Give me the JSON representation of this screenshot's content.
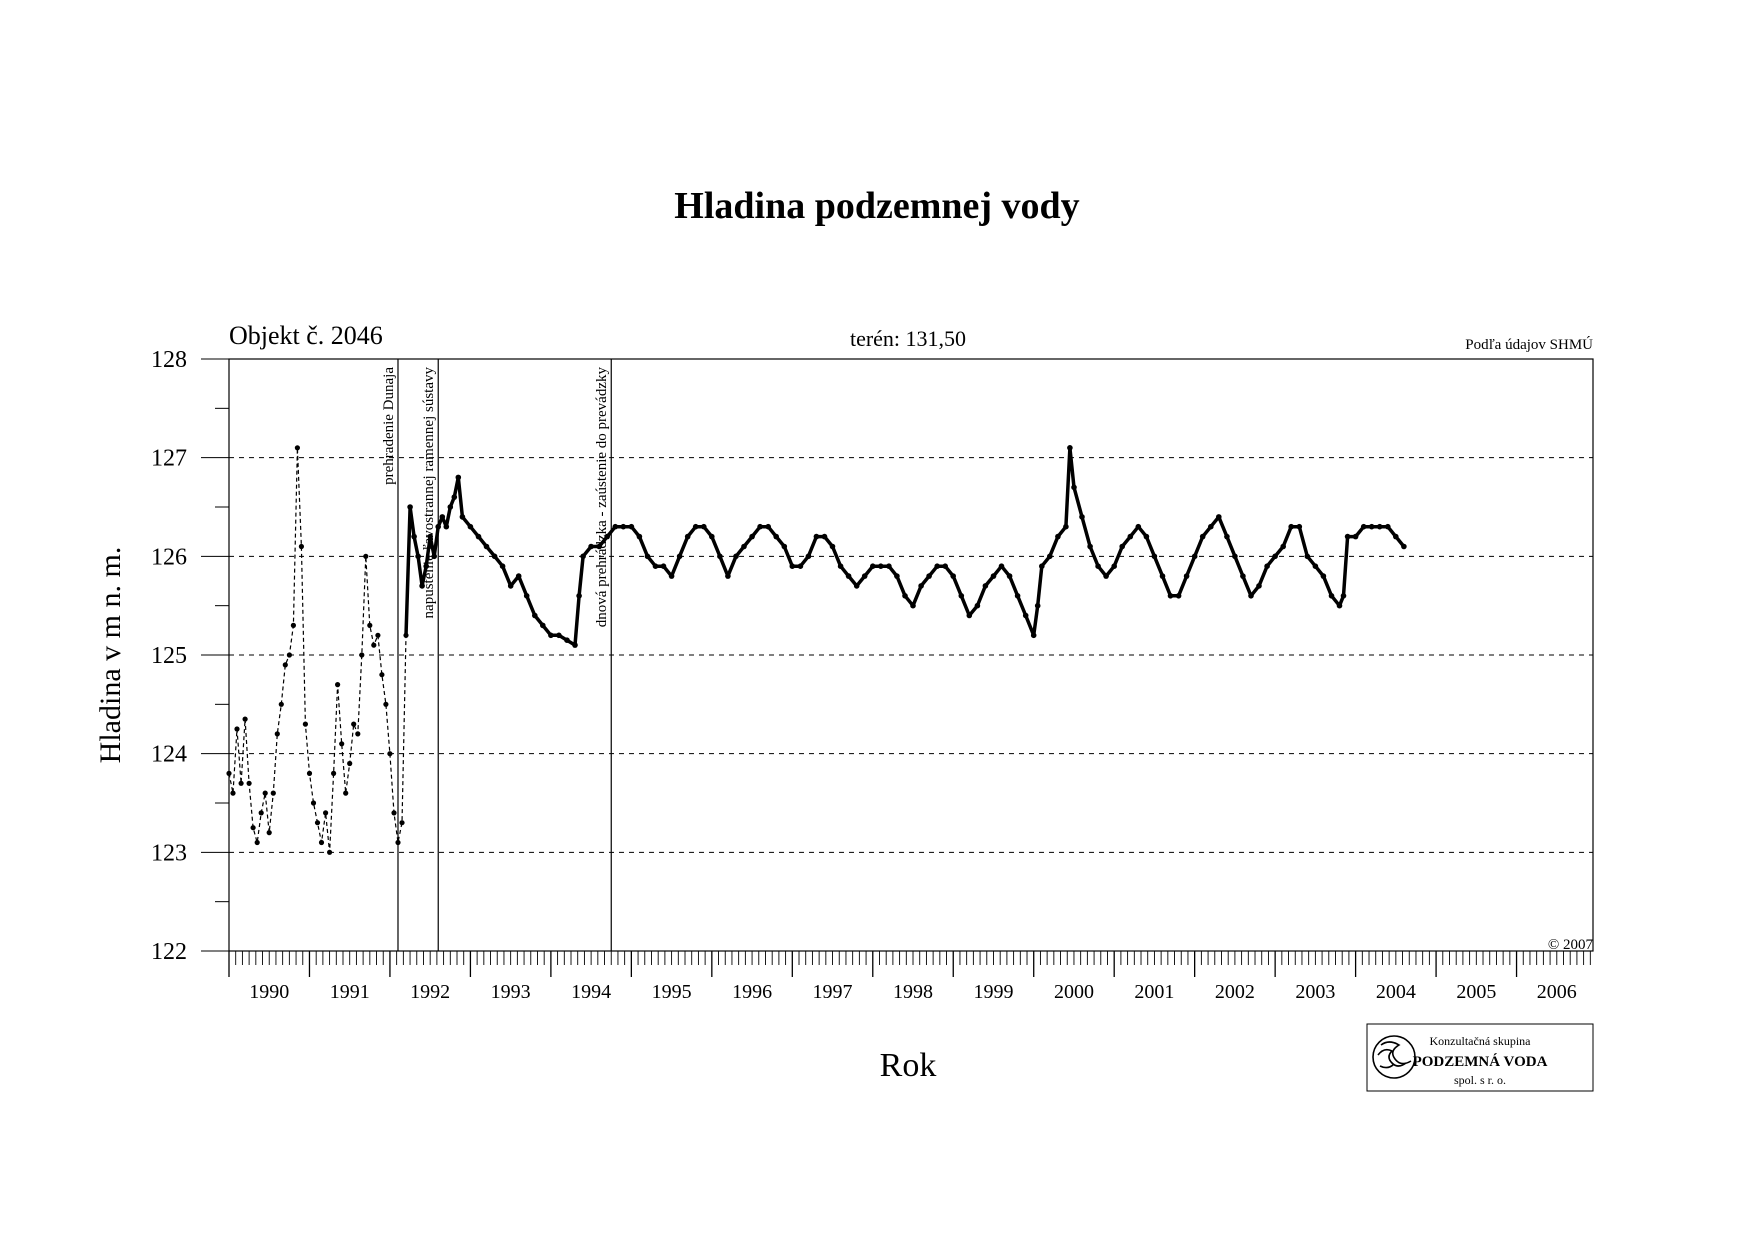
{
  "chart_data": {
    "type": "line",
    "title": "Hladina podzemnej vody",
    "ylabel": "Hladina v m n. m.",
    "xlabel": "Rok",
    "object_label": "Objekt č. 2046",
    "terrain_label": "terén: 131,50",
    "source_label": "Podľa údajov SHMÚ",
    "copyright": "© 2007",
    "ylim": [
      122,
      128
    ],
    "xlim": [
      1990.0,
      2006.95
    ],
    "yticks": [
      "122",
      "123",
      "124",
      "125",
      "126",
      "127",
      "128"
    ],
    "ytick_values": [
      122,
      123,
      124,
      125,
      126,
      127,
      128
    ],
    "grid_y": [
      123,
      124,
      125,
      126,
      127
    ],
    "x_year_labels": [
      "1990",
      "1991",
      "1992",
      "1993",
      "1994",
      "1995",
      "1996",
      "1997",
      "1998",
      "1999",
      "2000",
      "2001",
      "2002",
      "2003",
      "2004",
      "2005",
      "2006"
    ],
    "events": [
      {
        "x": 1992.1,
        "label": "prehradenie Dunaja"
      },
      {
        "x": 1992.6,
        "label": "napustenie ľavostrannej ramennej sústavy"
      },
      {
        "x": 1994.75,
        "label": "dnová prehrádzka - zaústenie do prevádzky"
      }
    ],
    "series": [
      {
        "values": [
          [
            1990.0,
            123.8
          ],
          [
            1990.05,
            123.6
          ],
          [
            1990.1,
            124.25
          ],
          [
            1990.15,
            123.7
          ],
          [
            1990.2,
            124.35
          ],
          [
            1990.25,
            123.7
          ],
          [
            1990.3,
            123.25
          ],
          [
            1990.35,
            123.1
          ],
          [
            1990.4,
            123.4
          ],
          [
            1990.45,
            123.6
          ],
          [
            1990.5,
            123.2
          ],
          [
            1990.55,
            123.6
          ],
          [
            1990.6,
            124.2
          ],
          [
            1990.65,
            124.5
          ],
          [
            1990.7,
            124.9
          ],
          [
            1990.75,
            125.0
          ],
          [
            1990.8,
            125.3
          ],
          [
            1990.85,
            127.1
          ],
          [
            1990.9,
            126.1
          ],
          [
            1990.95,
            124.3
          ],
          [
            1991.0,
            123.8
          ],
          [
            1991.05,
            123.5
          ],
          [
            1991.1,
            123.3
          ],
          [
            1991.15,
            123.1
          ],
          [
            1991.2,
            123.4
          ],
          [
            1991.25,
            123.0
          ],
          [
            1991.3,
            123.8
          ],
          [
            1991.35,
            124.7
          ],
          [
            1991.4,
            124.1
          ],
          [
            1991.45,
            123.6
          ],
          [
            1991.5,
            123.9
          ],
          [
            1991.55,
            124.3
          ],
          [
            1991.6,
            124.2
          ],
          [
            1991.65,
            125.0
          ],
          [
            1991.7,
            126.0
          ],
          [
            1991.75,
            125.3
          ],
          [
            1991.8,
            125.1
          ],
          [
            1991.85,
            125.2
          ],
          [
            1991.9,
            124.8
          ],
          [
            1991.95,
            124.5
          ],
          [
            1992.0,
            124.0
          ],
          [
            1992.05,
            123.4
          ],
          [
            1992.1,
            123.1
          ],
          [
            1992.15,
            123.3
          ],
          [
            1992.2,
            125.2
          ],
          [
            1992.25,
            126.5
          ],
          [
            1992.3,
            126.2
          ],
          [
            1992.35,
            126.0
          ],
          [
            1992.4,
            125.7
          ],
          [
            1992.45,
            125.9
          ],
          [
            1992.5,
            126.2
          ],
          [
            1992.55,
            126.0
          ],
          [
            1992.6,
            126.3
          ],
          [
            1992.65,
            126.4
          ],
          [
            1992.7,
            126.3
          ],
          [
            1992.75,
            126.5
          ],
          [
            1992.8,
            126.6
          ],
          [
            1992.85,
            126.8
          ],
          [
            1992.9,
            126.4
          ],
          [
            1993.0,
            126.3
          ],
          [
            1993.1,
            126.2
          ],
          [
            1993.2,
            126.1
          ],
          [
            1993.3,
            126.0
          ],
          [
            1993.4,
            125.9
          ],
          [
            1993.5,
            125.7
          ],
          [
            1993.6,
            125.8
          ],
          [
            1993.7,
            125.6
          ],
          [
            1993.8,
            125.4
          ],
          [
            1993.9,
            125.3
          ],
          [
            1994.0,
            125.2
          ],
          [
            1994.1,
            125.2
          ],
          [
            1994.2,
            125.15
          ],
          [
            1994.3,
            125.1
          ],
          [
            1994.35,
            125.6
          ],
          [
            1994.4,
            126.0
          ],
          [
            1994.5,
            126.1
          ],
          [
            1994.6,
            126.1
          ],
          [
            1994.7,
            126.2
          ],
          [
            1994.8,
            126.3
          ],
          [
            1994.9,
            126.3
          ],
          [
            1995.0,
            126.3
          ],
          [
            1995.1,
            126.2
          ],
          [
            1995.2,
            126.0
          ],
          [
            1995.3,
            125.9
          ],
          [
            1995.4,
            125.9
          ],
          [
            1995.5,
            125.8
          ],
          [
            1995.6,
            126.0
          ],
          [
            1995.7,
            126.2
          ],
          [
            1995.8,
            126.3
          ],
          [
            1995.9,
            126.3
          ],
          [
            1996.0,
            126.2
          ],
          [
            1996.1,
            126.0
          ],
          [
            1996.2,
            125.8
          ],
          [
            1996.3,
            126.0
          ],
          [
            1996.4,
            126.1
          ],
          [
            1996.5,
            126.2
          ],
          [
            1996.6,
            126.3
          ],
          [
            1996.7,
            126.3
          ],
          [
            1996.8,
            126.2
          ],
          [
            1996.9,
            126.1
          ],
          [
            1997.0,
            125.9
          ],
          [
            1997.1,
            125.9
          ],
          [
            1997.2,
            126.0
          ],
          [
            1997.3,
            126.2
          ],
          [
            1997.4,
            126.2
          ],
          [
            1997.5,
            126.1
          ],
          [
            1997.6,
            125.9
          ],
          [
            1997.7,
            125.8
          ],
          [
            1997.8,
            125.7
          ],
          [
            1997.9,
            125.8
          ],
          [
            1998.0,
            125.9
          ],
          [
            1998.1,
            125.9
          ],
          [
            1998.2,
            125.9
          ],
          [
            1998.3,
            125.8
          ],
          [
            1998.4,
            125.6
          ],
          [
            1998.5,
            125.5
          ],
          [
            1998.6,
            125.7
          ],
          [
            1998.7,
            125.8
          ],
          [
            1998.8,
            125.9
          ],
          [
            1998.9,
            125.9
          ],
          [
            1999.0,
            125.8
          ],
          [
            1999.1,
            125.6
          ],
          [
            1999.2,
            125.4
          ],
          [
            1999.3,
            125.5
          ],
          [
            1999.4,
            125.7
          ],
          [
            1999.5,
            125.8
          ],
          [
            1999.6,
            125.9
          ],
          [
            1999.7,
            125.8
          ],
          [
            1999.8,
            125.6
          ],
          [
            1999.9,
            125.4
          ],
          [
            2000.0,
            125.2
          ],
          [
            2000.05,
            125.5
          ],
          [
            2000.1,
            125.9
          ],
          [
            2000.2,
            126.0
          ],
          [
            2000.3,
            126.2
          ],
          [
            2000.4,
            126.3
          ],
          [
            2000.45,
            127.1
          ],
          [
            2000.5,
            126.7
          ],
          [
            2000.6,
            126.4
          ],
          [
            2000.7,
            126.1
          ],
          [
            2000.8,
            125.9
          ],
          [
            2000.9,
            125.8
          ],
          [
            2001.0,
            125.9
          ],
          [
            2001.1,
            126.1
          ],
          [
            2001.2,
            126.2
          ],
          [
            2001.3,
            126.3
          ],
          [
            2001.4,
            126.2
          ],
          [
            2001.5,
            126.0
          ],
          [
            2001.6,
            125.8
          ],
          [
            2001.7,
            125.6
          ],
          [
            2001.8,
            125.6
          ],
          [
            2001.9,
            125.8
          ],
          [
            2002.0,
            126.0
          ],
          [
            2002.1,
            126.2
          ],
          [
            2002.2,
            126.3
          ],
          [
            2002.3,
            126.4
          ],
          [
            2002.4,
            126.2
          ],
          [
            2002.5,
            126.0
          ],
          [
            2002.6,
            125.8
          ],
          [
            2002.7,
            125.6
          ],
          [
            2002.8,
            125.7
          ],
          [
            2002.9,
            125.9
          ],
          [
            2003.0,
            126.0
          ],
          [
            2003.1,
            126.1
          ],
          [
            2003.2,
            126.3
          ],
          [
            2003.3,
            126.3
          ],
          [
            2003.4,
            126.0
          ],
          [
            2003.5,
            125.9
          ],
          [
            2003.6,
            125.8
          ],
          [
            2003.7,
            125.6
          ],
          [
            2003.8,
            125.5
          ],
          [
            2003.85,
            125.6
          ],
          [
            2003.9,
            126.2
          ],
          [
            2004.0,
            126.2
          ],
          [
            2004.1,
            126.3
          ],
          [
            2004.2,
            126.3
          ],
          [
            2004.3,
            126.3
          ],
          [
            2004.4,
            126.3
          ],
          [
            2004.5,
            126.2
          ],
          [
            2004.6,
            126.1
          ]
        ]
      }
    ]
  },
  "logo": {
    "line1": "Konzultačná skupina",
    "line2": "PODZEMNÁ VODA",
    "line3": "spol. s r. o."
  }
}
